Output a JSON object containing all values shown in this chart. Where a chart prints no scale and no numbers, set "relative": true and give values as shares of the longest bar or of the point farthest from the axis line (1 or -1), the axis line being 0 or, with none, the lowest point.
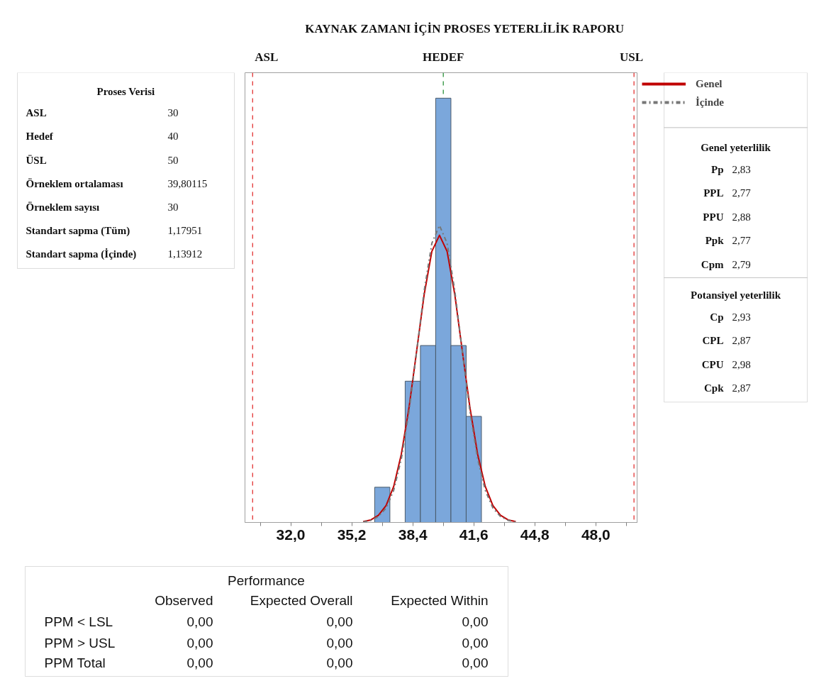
{
  "chart_data": {
    "type": "histogram",
    "title": "KAYNAK ZAMANI İÇİN PROSES YETERLİLİK RAPORU",
    "relative": true,
    "bins": [
      36.4,
      37.2,
      38.0,
      38.8,
      39.6,
      40.4,
      41.2,
      42.0
    ],
    "values": [
      0.083,
      0,
      0.333,
      0.417,
      1,
      0.417,
      0.25
    ],
    "color": "#7ba7db",
    "series": [
      {
        "type": "line",
        "name": "Genel",
        "color": "#c00000",
        "line_style": "solid",
        "x": [
          35.8,
          36.2,
          36.6,
          37.0,
          37.4,
          37.8,
          38.2,
          38.6,
          39.0,
          39.4,
          39.8,
          40.2,
          40.6,
          41.0,
          41.4,
          41.8,
          42.2,
          42.6,
          43.0,
          43.4,
          43.8
        ],
        "values": [
          0.002,
          0.006,
          0.017,
          0.04,
          0.085,
          0.161,
          0.27,
          0.403,
          0.538,
          0.639,
          0.677,
          0.639,
          0.538,
          0.403,
          0.27,
          0.161,
          0.085,
          0.04,
          0.017,
          0.006,
          0.002
        ]
      },
      {
        "type": "line",
        "name": "İçinde",
        "color": "#777777",
        "line_style": "dashdot",
        "x": [
          35.8,
          36.2,
          36.6,
          37.0,
          37.4,
          37.8,
          38.2,
          38.6,
          39.0,
          39.4,
          39.8,
          40.2,
          40.6,
          41.0,
          41.4,
          41.8,
          42.2,
          42.6,
          43.0,
          43.4,
          43.8
        ],
        "values": [
          0.001,
          0.005,
          0.014,
          0.034,
          0.076,
          0.15,
          0.261,
          0.402,
          0.547,
          0.658,
          0.7,
          0.658,
          0.547,
          0.402,
          0.261,
          0.15,
          0.076,
          0.034,
          0.014,
          0.005,
          0.001
        ]
      }
    ],
    "xlim": [
      29.6,
      50.2
    ],
    "xticks": [
      {
        "value": 30.4,
        "label": null
      },
      {
        "value": 32,
        "label": "32,0"
      },
      {
        "value": 33.6,
        "label": null
      },
      {
        "value": 35.2,
        "label": "35,2"
      },
      {
        "value": 36.8,
        "label": null
      },
      {
        "value": 38.4,
        "label": "38,4"
      },
      {
        "value": 40.0,
        "label": null
      },
      {
        "value": 41.6,
        "label": "41,6"
      },
      {
        "value": 43.2,
        "label": null
      },
      {
        "value": 44.8,
        "label": "44,8"
      },
      {
        "value": 46.4,
        "label": null
      },
      {
        "value": 48,
        "label": "48,0"
      },
      {
        "value": 49.6,
        "label": null
      }
    ],
    "ref_lines": [
      {
        "axis": "x",
        "value": 30,
        "label": "ASL",
        "color": "#e02020",
        "line_style": "dashed"
      },
      {
        "axis": "x",
        "value": 40,
        "label": "HEDEF",
        "color": "#1a8a2a",
        "line_style": "dashed"
      },
      {
        "axis": "x",
        "value": 50,
        "label": "USL",
        "color": "#e02020",
        "line_style": "dashed"
      }
    ],
    "grid": false,
    "legend": "right",
    "annotations": [
      "Proses Verisi",
      "ASL\t30",
      "Hedef\t40",
      "ÜSL\t50",
      "Örneklem ortalaması\t39,80115",
      "Örneklem sayısı\t30",
      "Standart sapma (Tüm)\t1,17951",
      "Standart sapma (İçinde)\t1,13912",
      "Genel yeterlilik",
      "Pp\t2,83",
      "PPL\t2,77",
      "PPU\t2,88",
      "Ppk\t2,77",
      "Cpm\t2,79",
      "Potansiyel yeterlilik",
      "Cp\t2,93",
      "CPL\t2,87",
      "CPU\t2,98",
      "Cpk\t2,87",
      "Performance",
      "\tObserved\tExpected Overall\tExpected Within",
      "PPM < LSL\t0,00\t0,00\t0,00",
      "PPM > USL\t0,00\t0,00\t0,00",
      "PPM Total\t0,00\t0,00\t0,00"
    ]
  }
}
